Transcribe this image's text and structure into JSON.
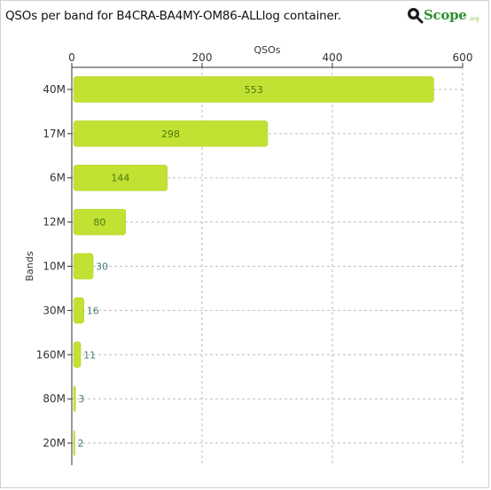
{
  "header": {
    "title": "QSOs per band for B4CRA-BA4MY-OM86-ALLlog container.",
    "logo_text": "Scope",
    "logo_sub": ".org"
  },
  "colors": {
    "bar_fill": "#c2e233",
    "bar_stroke": "#b0d020",
    "label_inside": "#4a7a10",
    "label_outside": "#4a7a7a",
    "grid": "#bdbdbd",
    "axis": "#333333"
  },
  "chart_data": {
    "type": "bar",
    "orientation": "horizontal",
    "title": "QSOs per band for B4CRA-BA4MY-OM86-ALLlog container.",
    "xlabel": "QSOs",
    "ylabel": "Bands",
    "xlim": [
      0,
      600
    ],
    "xticks": [
      0,
      200,
      400,
      600
    ],
    "x_axis_position": "top",
    "grid": true,
    "categories": [
      "40M",
      "17M",
      "6M",
      "12M",
      "10M",
      "30M",
      "160M",
      "80M",
      "20M"
    ],
    "values": [
      553,
      298,
      144,
      80,
      30,
      16,
      11,
      3,
      2
    ],
    "data_labels": [
      "553",
      "298",
      "144",
      "80",
      "30",
      "16",
      "11",
      "3",
      "2"
    ]
  }
}
